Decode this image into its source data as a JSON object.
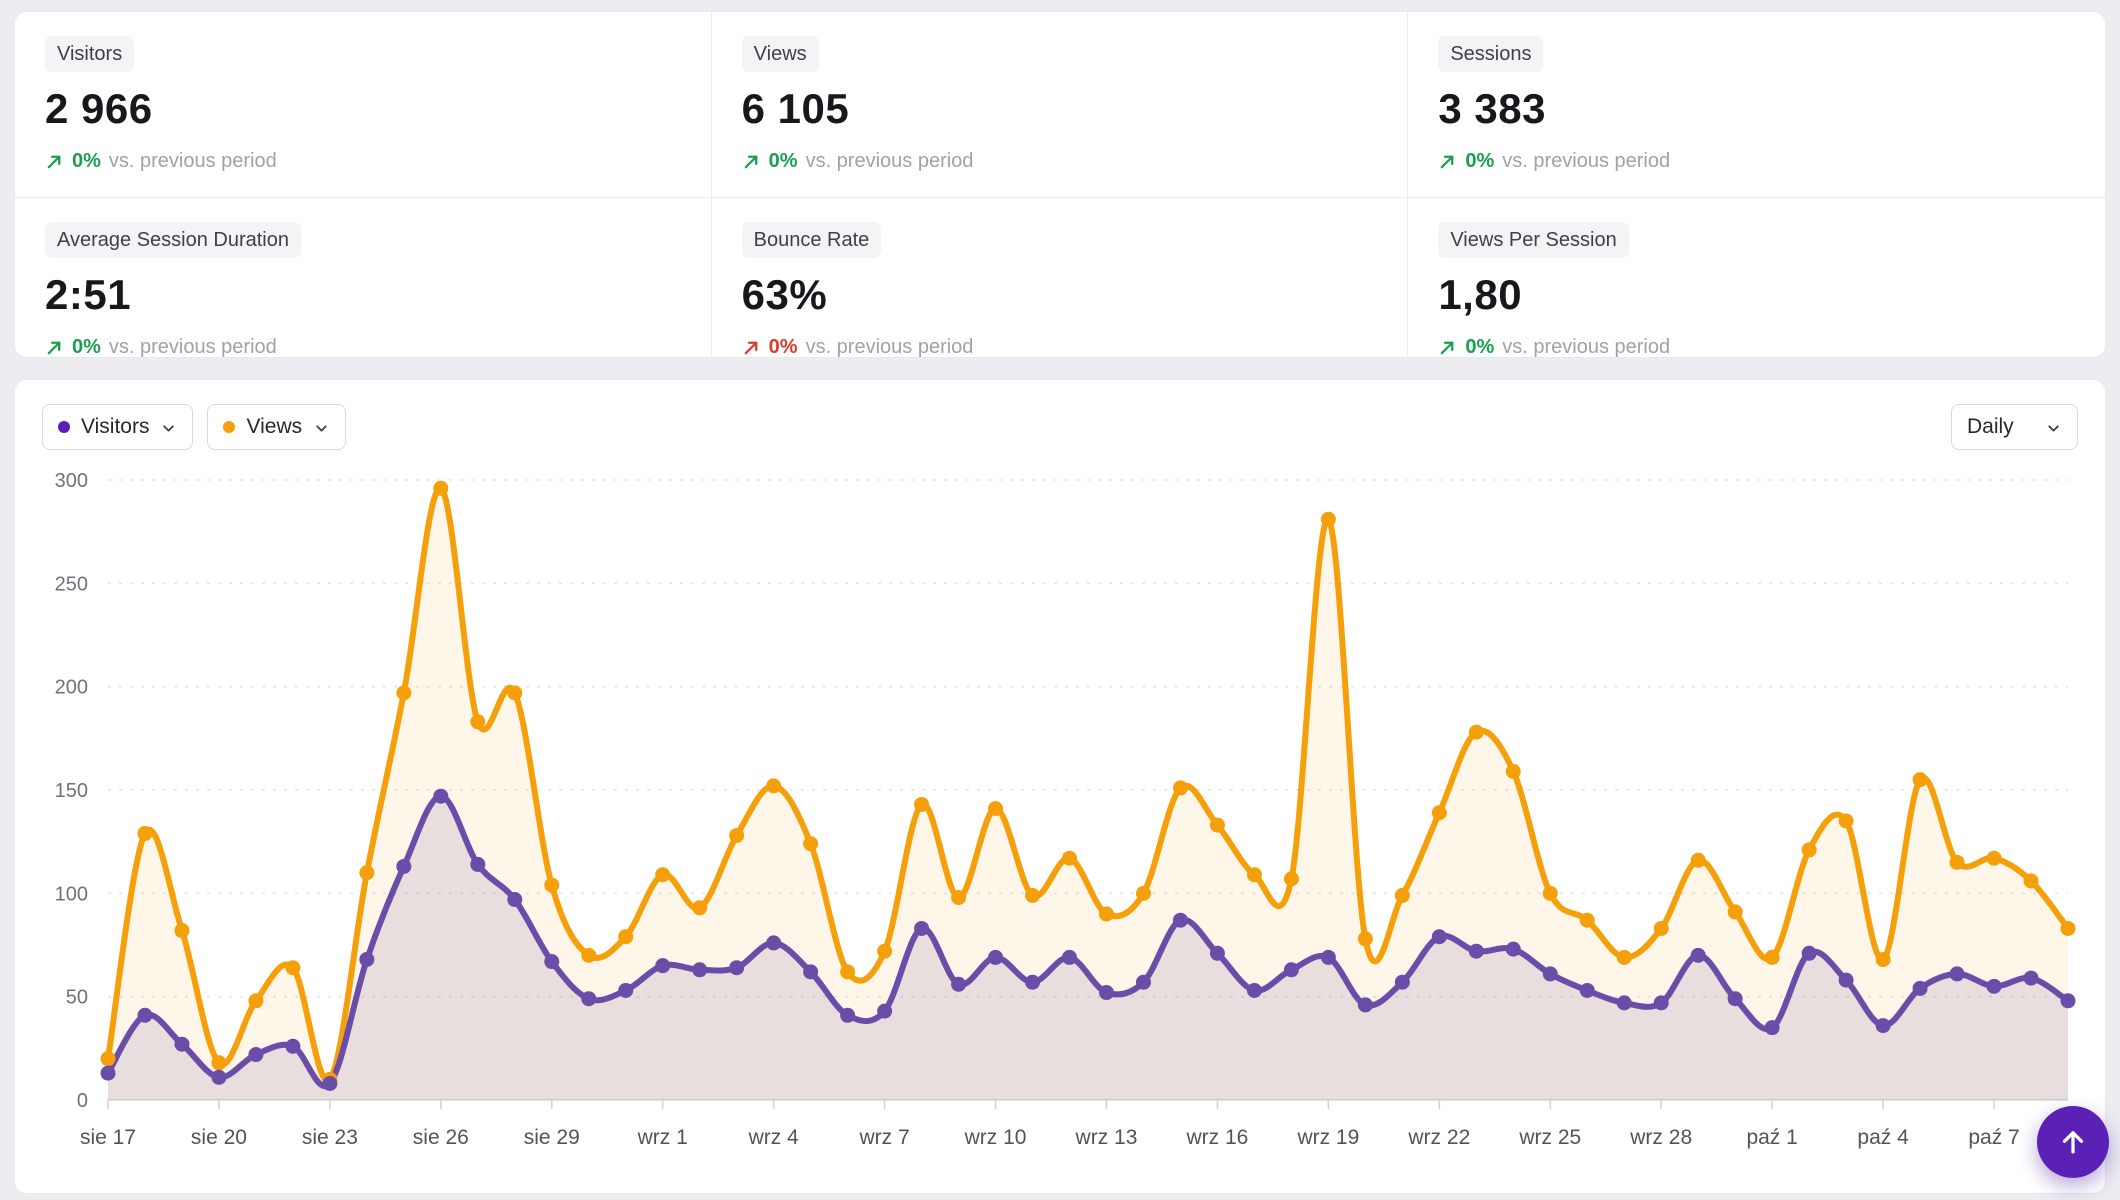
{
  "page": {
    "background": "#ececf1"
  },
  "stats": {
    "change_suffix": "vs. previous period",
    "cards": [
      {
        "label": "Visitors",
        "value": "2 966",
        "change": "0%",
        "direction": "up",
        "change_color": "#18a04e"
      },
      {
        "label": "Views",
        "value": "6 105",
        "change": "0%",
        "direction": "up",
        "change_color": "#18a04e"
      },
      {
        "label": "Sessions",
        "value": "3 383",
        "change": "0%",
        "direction": "up",
        "change_color": "#18a04e"
      },
      {
        "label": "Average Session Duration",
        "value": "2:51",
        "change": "0%",
        "direction": "up",
        "change_color": "#18a04e"
      },
      {
        "label": "Bounce Rate",
        "value": "63%",
        "change": "0%",
        "direction": "up",
        "change_color": "#dc3b2b"
      },
      {
        "label": "Views Per Session",
        "value": "1,80",
        "change": "0%",
        "direction": "up",
        "change_color": "#18a04e"
      }
    ]
  },
  "toolbar": {
    "legend": [
      {
        "label": "Visitors",
        "dot_color": "#5b21b6"
      },
      {
        "label": "Views",
        "dot_color": "#f5a00b"
      }
    ],
    "interval_select": {
      "value": "Daily"
    }
  },
  "chart_data": {
    "type": "area",
    "title": "",
    "xlabel": "",
    "ylabel": "",
    "ylim": [
      0,
      300
    ],
    "yticks": [
      0,
      50,
      100,
      150,
      200,
      250,
      300
    ],
    "grid": "horizontal-dashed",
    "legend_position": "top-left",
    "categories": [
      "sie 17",
      "sie 18",
      "sie 19",
      "sie 20",
      "sie 21",
      "sie 22",
      "sie 23",
      "sie 24",
      "sie 25",
      "sie 26",
      "sie 27",
      "sie 28",
      "sie 29",
      "sie 30",
      "sie 31",
      "wrz 1",
      "wrz 2",
      "wrz 3",
      "wrz 4",
      "wrz 5",
      "wrz 6",
      "wrz 7",
      "wrz 8",
      "wrz 9",
      "wrz 10",
      "wrz 11",
      "wrz 12",
      "wrz 13",
      "wrz 14",
      "wrz 15",
      "wrz 16",
      "wrz 17",
      "wrz 18",
      "wrz 19",
      "wrz 20",
      "wrz 21",
      "wrz 22",
      "wrz 23",
      "wrz 24",
      "wrz 25",
      "wrz 26",
      "wrz 27",
      "wrz 28",
      "wrz 29",
      "wrz 30",
      "paź 1",
      "paź 2",
      "paź 3",
      "paź 4",
      "paź 5",
      "paź 6",
      "paź 7",
      "paź 8",
      "paź 9"
    ],
    "x_tick_labels": [
      "sie 17",
      "sie 20",
      "sie 23",
      "sie 26",
      "sie 29",
      "wrz 1",
      "wrz 4",
      "wrz 7",
      "wrz 10",
      "wrz 13",
      "wrz 16",
      "wrz 19",
      "wrz 22",
      "wrz 25",
      "wrz 28",
      "paź 1",
      "paź 4",
      "paź 7"
    ],
    "x_tick_every": 3,
    "series": [
      {
        "name": "Views",
        "color": "#f5a00b",
        "fill": "rgba(245,160,11,0.09)",
        "values": [
          20,
          129,
          82,
          18,
          48,
          64,
          10,
          110,
          197,
          296,
          183,
          197,
          104,
          70,
          79,
          109,
          93,
          128,
          152,
          124,
          62,
          72,
          143,
          98,
          141,
          99,
          117,
          90,
          100,
          151,
          133,
          109,
          107,
          281,
          78,
          99,
          139,
          178,
          159,
          100,
          87,
          69,
          83,
          116,
          91,
          69,
          121,
          135,
          68,
          155,
          115,
          117,
          106,
          83
        ]
      },
      {
        "name": "Visitors",
        "color": "#6a4da8",
        "fill": "rgba(80,62,150,0.13)",
        "values": [
          13,
          41,
          27,
          11,
          22,
          26,
          8,
          68,
          113,
          147,
          114,
          97,
          67,
          49,
          53,
          65,
          63,
          64,
          76,
          62,
          41,
          43,
          83,
          56,
          69,
          57,
          69,
          52,
          57,
          87,
          71,
          53,
          63,
          69,
          46,
          57,
          79,
          72,
          73,
          61,
          53,
          47,
          47,
          70,
          49,
          35,
          71,
          58,
          36,
          54,
          61,
          55,
          59,
          48
        ]
      }
    ]
  },
  "fab": {
    "icon": "arrow-up"
  }
}
